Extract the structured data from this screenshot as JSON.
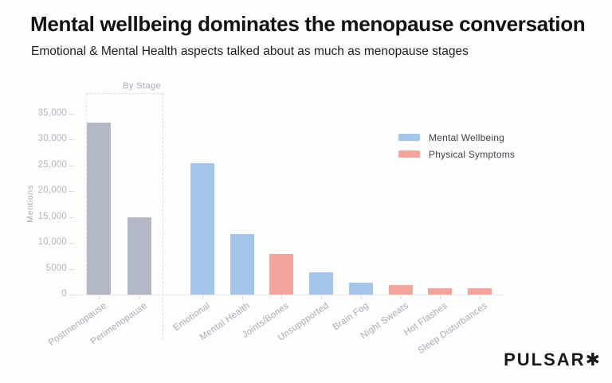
{
  "header": {
    "title": "Mental wellbeing dominates the menopause conversation",
    "subtitle": "Emotional & Mental Health aspects talked about as much as menopause stages"
  },
  "logo": {
    "text": "PULSAR",
    "mark": "✱"
  },
  "chart_data": {
    "type": "bar",
    "ylabel": "Mentions",
    "xlabel": "",
    "group_label": "By Stage",
    "ylim": [
      0,
      35000
    ],
    "grid": false,
    "legend_position": "upper right",
    "y_ticks": [
      {
        "value": 0,
        "label": "0"
      },
      {
        "value": 5000,
        "label": "5000"
      },
      {
        "value": 10000,
        "label": "10,000"
      },
      {
        "value": 15000,
        "label": "15,000"
      },
      {
        "value": 20000,
        "label": "20,000"
      },
      {
        "value": 25000,
        "label": "25,000"
      },
      {
        "value": 30000,
        "label": "30,000"
      },
      {
        "value": 35000,
        "label": "35,000"
      }
    ],
    "legend": [
      {
        "name": "Mental Wellbeing",
        "color": "#a5c6ea"
      },
      {
        "name": "Physical Symptoms",
        "color": "#f2a59a"
      }
    ],
    "series_colors": {
      "stage": "#b2b8c6",
      "mental": "#a5c6ea",
      "physical": "#f2a59a"
    },
    "categories": [
      "Postmenopause",
      "Perimenopause",
      "Emotional",
      "Mental Health",
      "Joints/Bones",
      "Unsuppported",
      "Brain Fog",
      "Night Sweats",
      "Hot Flashes",
      "Sleep Disturbances"
    ],
    "bars": [
      {
        "label": "Postmenopause",
        "value": 33200,
        "group": "stage"
      },
      {
        "label": "Perimenopause",
        "value": 14900,
        "group": "stage"
      },
      {
        "label": "Emotional",
        "value": 25400,
        "group": "mental"
      },
      {
        "label": "Mental Health",
        "value": 11700,
        "group": "mental"
      },
      {
        "label": "Joints/Bones",
        "value": 7800,
        "group": "physical"
      },
      {
        "label": "Unsuppported",
        "value": 4300,
        "group": "mental"
      },
      {
        "label": "Brain Fog",
        "value": 2300,
        "group": "mental"
      },
      {
        "label": "Night Sweats",
        "value": 1900,
        "group": "physical"
      },
      {
        "label": "Hot Flashes",
        "value": 1300,
        "group": "physical"
      },
      {
        "label": "Sleep Disturbances",
        "value": 1200,
        "group": "physical"
      }
    ]
  }
}
